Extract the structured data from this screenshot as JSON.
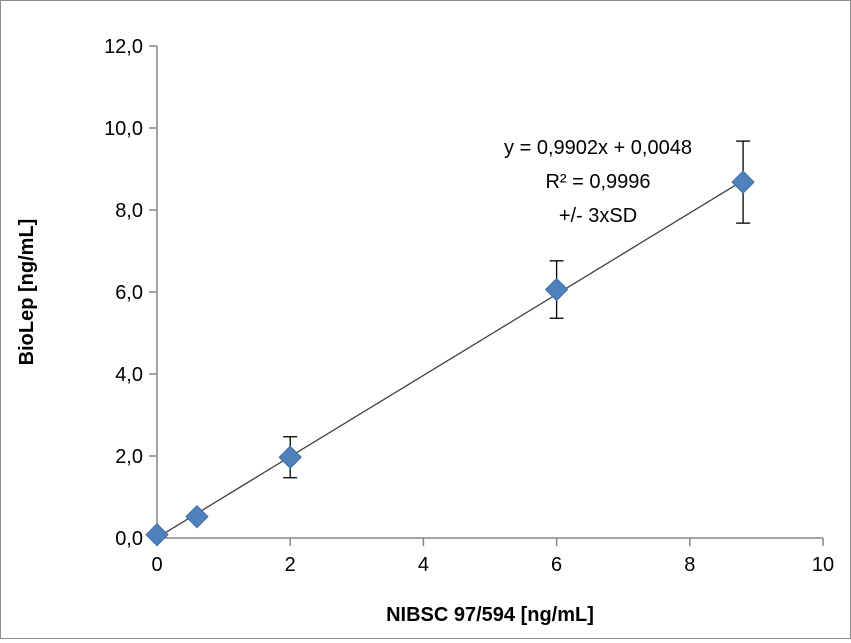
{
  "chart_data": {
    "type": "scatter",
    "title": "",
    "xlabel": "NIBSC 97/594 [ng/mL]",
    "ylabel": "BioLep [ng/mL]",
    "xlim": [
      0,
      10
    ],
    "ylim": [
      0,
      12
    ],
    "x_ticks": [
      0,
      2,
      4,
      6,
      8,
      10
    ],
    "x_tick_labels": [
      "0",
      "2",
      "4",
      "6",
      "8",
      "10"
    ],
    "y_ticks": [
      0,
      2,
      4,
      6,
      8,
      10,
      12
    ],
    "y_tick_labels": [
      "0,0",
      "2,0",
      "4,0",
      "6,0",
      "8,0",
      "10,0",
      "12,0"
    ],
    "grid": false,
    "legend": "none",
    "series": [
      {
        "marker": "diamond",
        "color": "#4f81bd",
        "points": [
          {
            "x": 0.0,
            "y": 0.08,
            "err": 0
          },
          {
            "x": 0.6,
            "y": 0.52,
            "err": 0
          },
          {
            "x": 2.0,
            "y": 1.97,
            "err": 0.5
          },
          {
            "x": 6.0,
            "y": 6.06,
            "err": 0.7
          },
          {
            "x": 8.8,
            "y": 8.68,
            "err": 1.0
          }
        ]
      }
    ],
    "trendline": {
      "slope": 0.9902,
      "intercept": 0.0048,
      "x_range": [
        0,
        8.8
      ],
      "color": "#404040"
    },
    "annotations": [
      "y = 0,9902x + 0,0048",
      "R² = 0,9996",
      "+/- 3xSD"
    ]
  }
}
